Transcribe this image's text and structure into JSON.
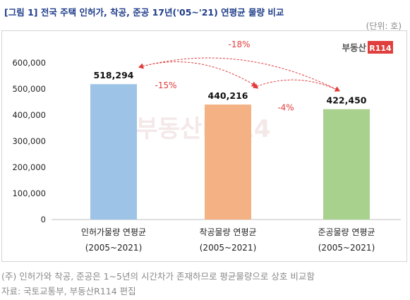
{
  "header": {
    "title": "[그림 1] 전국 주택 인허가, 착공, 준공 17년('05~'21) 연평균 물량 비교",
    "unit": "(단위: 호)"
  },
  "logo": {
    "text": "부동산",
    "badge": "R114",
    "badge_color": "#e0403d"
  },
  "watermark": "부동산R114",
  "chart_data": {
    "type": "bar",
    "categories": [
      "인허가물량 연평균",
      "착공물량 연평균",
      "준공물량 연평균"
    ],
    "category_sublabels": [
      "(2005~2021)",
      "(2005~2021)",
      "(2005~2021)"
    ],
    "values": [
      518294,
      440216,
      422450
    ],
    "value_labels": [
      "518,294",
      "440,216",
      "422,450"
    ],
    "colors": [
      "#9dc3e6",
      "#f4b183",
      "#a9d18e"
    ],
    "ylim": [
      0,
      600000
    ],
    "yticks": [
      0,
      100000,
      200000,
      300000,
      400000,
      500000,
      600000
    ],
    "ytick_labels": [
      "0",
      "100,000",
      "200,000",
      "300,000",
      "400,000",
      "500,000",
      "600,000"
    ],
    "grid": false,
    "annotations": [
      {
        "from": 0,
        "to": 2,
        "label": "-18%"
      },
      {
        "from": 0,
        "to": 1,
        "label": "-15%"
      },
      {
        "from": 1,
        "to": 2,
        "label": "-4%"
      }
    ],
    "annotation_color": "#e03c3c"
  },
  "footnotes": [
    "(주) 인허가와 착공, 준공은 1~5년의 시간차가 존재하므로 평균물량으로 상호 비교함",
    "자료: 국토교통부, 부동산R114 편집"
  ]
}
